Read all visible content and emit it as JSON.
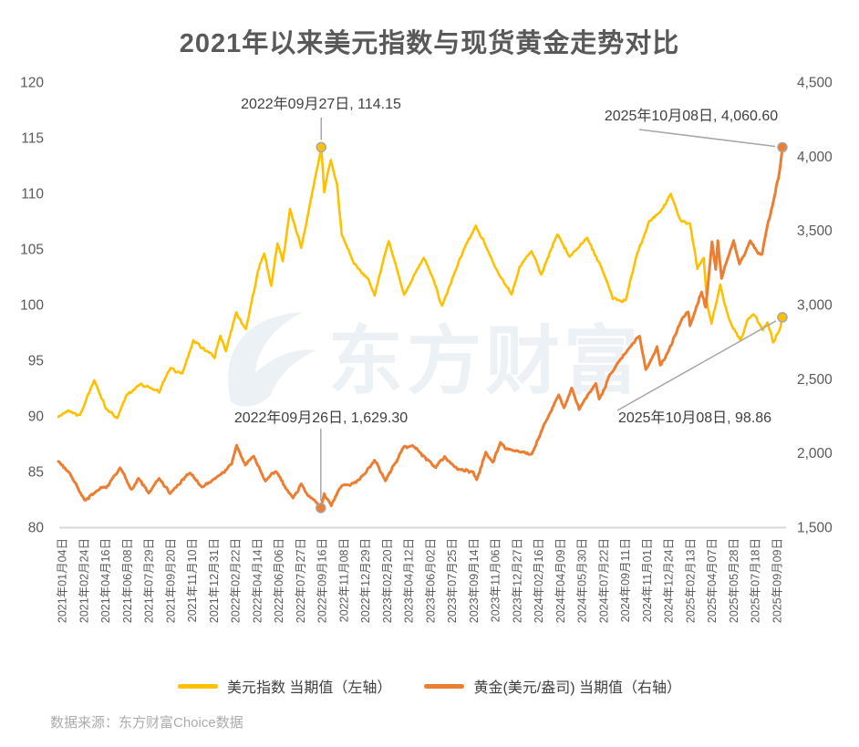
{
  "chart_data": {
    "type": "line",
    "title": "2021年以来美元指数与现货黄金走势对比",
    "watermark": "东方财富",
    "source_note": "数据来源：东方财富Choice数据",
    "x_axis": {
      "start_date": "2021-01-04",
      "end_date": "2025-10-08",
      "tick_labels": [
        "2021年01月04日",
        "2021年02月24日",
        "2021年04月16日",
        "2021年06月08日",
        "2021年07月29日",
        "2021年09月20日",
        "2021年11月10日",
        "2021年12月31日",
        "2022年02月22日",
        "2022年04月14日",
        "2022年06月06日",
        "2022年07月27日",
        "2022年09月16日",
        "2022年11月08日",
        "2022年12月29日",
        "2023年02月20日",
        "2023年04月12日",
        "2023年06月02日",
        "2023年07月25日",
        "2023年09月14日",
        "2023年11月06日",
        "2023年12月27日",
        "2024年02月16日",
        "2024年04月09日",
        "2024年05月30日",
        "2024年07月22日",
        "2024年09月11日",
        "2024年11月01日",
        "2024年12月24日",
        "2025年02月13日",
        "2025年04月07日",
        "2025年05月28日",
        "2025年07月18日",
        "2025年09月09日"
      ]
    },
    "y_axis_left": {
      "min": 80,
      "max": 120,
      "step": 5,
      "tick_labels": [
        "120",
        "115",
        "110",
        "105",
        "100",
        "95",
        "90",
        "85",
        "80"
      ]
    },
    "y_axis_right": {
      "min": 1500,
      "max": 4500,
      "step": 500,
      "tick_labels": [
        "4,500",
        "4,000",
        "3,500",
        "3,000",
        "2,500",
        "2,000",
        "1,500"
      ]
    },
    "series": [
      {
        "id": "usd_index",
        "name": "美元指数 当期值（左轴）",
        "axis": "left",
        "color": "#FFC000",
        "points": [
          [
            "2021-01-04",
            89.9
          ],
          [
            "2021-01-28",
            90.5
          ],
          [
            "2021-02-25",
            90.1
          ],
          [
            "2021-03-31",
            93.2
          ],
          [
            "2021-04-29",
            90.6
          ],
          [
            "2021-05-25",
            89.8
          ],
          [
            "2021-06-17",
            91.9
          ],
          [
            "2021-07-21",
            92.9
          ],
          [
            "2021-08-13",
            92.5
          ],
          [
            "2021-09-03",
            92.1
          ],
          [
            "2021-09-30",
            94.3
          ],
          [
            "2021-10-28",
            93.8
          ],
          [
            "2021-11-24",
            96.8
          ],
          [
            "2021-12-31",
            95.7
          ],
          [
            "2022-01-14",
            95.2
          ],
          [
            "2022-01-28",
            97.2
          ],
          [
            "2022-02-10",
            95.8
          ],
          [
            "2022-03-07",
            99.3
          ],
          [
            "2022-03-30",
            97.8
          ],
          [
            "2022-04-28",
            103.0
          ],
          [
            "2022-05-13",
            104.6
          ],
          [
            "2022-05-30",
            101.7
          ],
          [
            "2022-06-14",
            105.5
          ],
          [
            "2022-06-27",
            103.9
          ],
          [
            "2022-07-14",
            108.6
          ],
          [
            "2022-08-10",
            105.1
          ],
          [
            "2022-09-06",
            110.2
          ],
          [
            "2022-09-27",
            114.15
          ],
          [
            "2022-10-04",
            110.1
          ],
          [
            "2022-10-20",
            113.0
          ],
          [
            "2022-11-04",
            110.8
          ],
          [
            "2022-11-15",
            106.3
          ],
          [
            "2022-12-14",
            103.7
          ],
          [
            "2023-01-18",
            102.3
          ],
          [
            "2023-02-02",
            100.8
          ],
          [
            "2023-03-08",
            105.7
          ],
          [
            "2023-04-14",
            100.9
          ],
          [
            "2023-05-31",
            104.2
          ],
          [
            "2023-06-22",
            102.4
          ],
          [
            "2023-07-14",
            99.9
          ],
          [
            "2023-08-25",
            104.1
          ],
          [
            "2023-10-03",
            107.1
          ],
          [
            "2023-11-28",
            102.7
          ],
          [
            "2023-12-28",
            100.9
          ],
          [
            "2024-01-16",
            103.4
          ],
          [
            "2024-02-14",
            104.8
          ],
          [
            "2024-03-08",
            102.7
          ],
          [
            "2024-04-16",
            106.3
          ],
          [
            "2024-05-15",
            104.3
          ],
          [
            "2024-06-26",
            106.0
          ],
          [
            "2024-08-02",
            103.1
          ],
          [
            "2024-08-27",
            100.5
          ],
          [
            "2024-09-27",
            100.4
          ],
          [
            "2024-10-23",
            104.4
          ],
          [
            "2024-11-22",
            107.5
          ],
          [
            "2024-12-18",
            108.3
          ],
          [
            "2025-01-13",
            109.95
          ],
          [
            "2025-02-05",
            107.6
          ],
          [
            "2025-02-28",
            107.3
          ],
          [
            "2025-03-18",
            103.2
          ],
          [
            "2025-04-02",
            104.2
          ],
          [
            "2025-04-11",
            99.8
          ],
          [
            "2025-04-21",
            98.3
          ],
          [
            "2025-05-12",
            101.8
          ],
          [
            "2025-06-02",
            98.7
          ],
          [
            "2025-06-30",
            96.8
          ],
          [
            "2025-07-17",
            98.7
          ],
          [
            "2025-08-01",
            99.1
          ],
          [
            "2025-08-22",
            97.7
          ],
          [
            "2025-09-02",
            98.4
          ],
          [
            "2025-09-16",
            96.6
          ],
          [
            "2025-10-01",
            97.7
          ],
          [
            "2025-10-08",
            98.86
          ]
        ]
      },
      {
        "id": "gold",
        "name": "黄金(美元/盎司) 当期值（右轴）",
        "axis": "right",
        "color": "#ED7D31",
        "points": [
          [
            "2021-01-04",
            1943
          ],
          [
            "2021-02-01",
            1863
          ],
          [
            "2021-03-08",
            1683
          ],
          [
            "2021-04-01",
            1730
          ],
          [
            "2021-05-04",
            1780
          ],
          [
            "2021-06-01",
            1900
          ],
          [
            "2021-06-29",
            1755
          ],
          [
            "2021-07-15",
            1829
          ],
          [
            "2021-08-09",
            1729
          ],
          [
            "2021-09-03",
            1828
          ],
          [
            "2021-09-29",
            1726
          ],
          [
            "2021-11-16",
            1865
          ],
          [
            "2021-12-15",
            1770
          ],
          [
            "2022-01-25",
            1848
          ],
          [
            "2022-02-24",
            1925
          ],
          [
            "2022-03-08",
            2052
          ],
          [
            "2022-03-29",
            1918
          ],
          [
            "2022-04-18",
            1978
          ],
          [
            "2022-05-16",
            1811
          ],
          [
            "2022-06-10",
            1875
          ],
          [
            "2022-07-21",
            1697
          ],
          [
            "2022-08-10",
            1792
          ],
          [
            "2022-09-01",
            1700
          ],
          [
            "2022-09-26",
            1629.3
          ],
          [
            "2022-10-04",
            1726
          ],
          [
            "2022-10-21",
            1644
          ],
          [
            "2022-11-15",
            1779
          ],
          [
            "2022-12-05",
            1781
          ],
          [
            "2023-01-03",
            1844
          ],
          [
            "2023-02-02",
            1951
          ],
          [
            "2023-02-28",
            1812
          ],
          [
            "2023-04-13",
            2041
          ],
          [
            "2023-05-04",
            2050
          ],
          [
            "2023-06-29",
            1902
          ],
          [
            "2023-07-20",
            1977
          ],
          [
            "2023-08-21",
            1888
          ],
          [
            "2023-09-27",
            1873
          ],
          [
            "2023-10-05",
            1820
          ],
          [
            "2023-10-27",
            2006
          ],
          [
            "2023-11-13",
            1938
          ],
          [
            "2023-12-01",
            2072
          ],
          [
            "2023-12-13",
            2027
          ],
          [
            "2024-01-17",
            2006
          ],
          [
            "2024-02-14",
            1992
          ],
          [
            "2024-03-21",
            2222
          ],
          [
            "2024-04-19",
            2392
          ],
          [
            "2024-05-02",
            2304
          ],
          [
            "2024-05-20",
            2438
          ],
          [
            "2024-06-07",
            2293
          ],
          [
            "2024-07-17",
            2469
          ],
          [
            "2024-07-25",
            2364
          ],
          [
            "2024-08-20",
            2531
          ],
          [
            "2024-09-26",
            2672
          ],
          [
            "2024-10-30",
            2787
          ],
          [
            "2024-11-14",
            2563
          ],
          [
            "2024-12-11",
            2717
          ],
          [
            "2024-12-19",
            2592
          ],
          [
            "2025-01-02",
            2658
          ],
          [
            "2025-02-10",
            2911
          ],
          [
            "2025-02-24",
            2951
          ],
          [
            "2025-02-28",
            2858
          ],
          [
            "2025-03-28",
            3085
          ],
          [
            "2025-04-07",
            2983
          ],
          [
            "2025-04-22",
            3424
          ],
          [
            "2025-05-01",
            3237
          ],
          [
            "2025-05-06",
            3431
          ],
          [
            "2025-05-15",
            3177
          ],
          [
            "2025-06-13",
            3432
          ],
          [
            "2025-06-27",
            3274
          ],
          [
            "2025-07-23",
            3431
          ],
          [
            "2025-08-11",
            3344
          ],
          [
            "2025-08-20",
            3339
          ],
          [
            "2025-09-02",
            3534
          ],
          [
            "2025-09-16",
            3689
          ],
          [
            "2025-09-23",
            3791
          ],
          [
            "2025-10-01",
            3895
          ],
          [
            "2025-10-08",
            4060.6
          ]
        ]
      }
    ],
    "annotations": [
      {
        "id": "usd-peak",
        "text": "2022年09月27日, 114.15",
        "date": "2022-09-27",
        "value": 114.15,
        "series": "usd_index"
      },
      {
        "id": "gold-latest",
        "text": "2025年10月08日, 4,060.60",
        "date": "2025-10-08",
        "value": 4060.6,
        "series": "gold"
      },
      {
        "id": "gold-low",
        "text": "2022年09月26日, 1,629.30",
        "date": "2022-09-26",
        "value": 1629.3,
        "series": "gold"
      },
      {
        "id": "usd-latest",
        "text": "2025年10月08日, 98.86",
        "date": "2025-10-08",
        "value": 98.86,
        "series": "usd_index"
      }
    ],
    "legend_position": "bottom",
    "grid": "off",
    "colors": {
      "usd_line": "#FFC000",
      "gold_line": "#ED7D31",
      "title_text": "#595959",
      "axis_text": "#595959",
      "annotation_text": "#404040",
      "callout_line": "#A6A6A6",
      "axis_line": "#D9D9D9",
      "watermark": "#ECF1F5",
      "source_text": "#ABABAB"
    }
  }
}
